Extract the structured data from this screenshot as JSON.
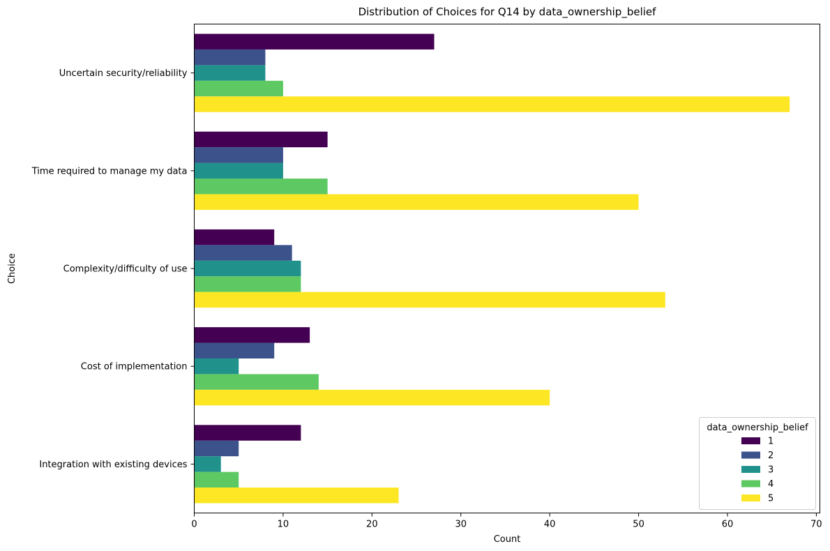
{
  "chart_data": {
    "type": "bar",
    "orientation": "horizontal",
    "title": "Distribution of Choices for Q14 by data_ownership_belief",
    "xlabel": "Count",
    "ylabel": "Choice",
    "xlim": [
      0,
      70.4
    ],
    "xticks": [
      0,
      10,
      20,
      30,
      40,
      50,
      60,
      70
    ],
    "grid": false,
    "categories": [
      "Uncertain security/reliability",
      "Time required to manage my data",
      "Complexity/difficulty of use",
      "Cost of implementation",
      "Integration with existing devices"
    ],
    "legend": {
      "title": "data_ownership_belief",
      "placement": "lower right"
    },
    "series": [
      {
        "name": "1",
        "color": "#440154",
        "values": [
          27,
          15,
          9,
          13,
          12
        ]
      },
      {
        "name": "2",
        "color": "#3b528b",
        "values": [
          8,
          10,
          11,
          9,
          5
        ]
      },
      {
        "name": "3",
        "color": "#21918c",
        "values": [
          8,
          10,
          12,
          5,
          3
        ]
      },
      {
        "name": "4",
        "color": "#5ec962",
        "values": [
          10,
          15,
          12,
          14,
          5
        ]
      },
      {
        "name": "5",
        "color": "#fde725",
        "values": [
          67,
          50,
          53,
          40,
          23
        ]
      }
    ]
  }
}
